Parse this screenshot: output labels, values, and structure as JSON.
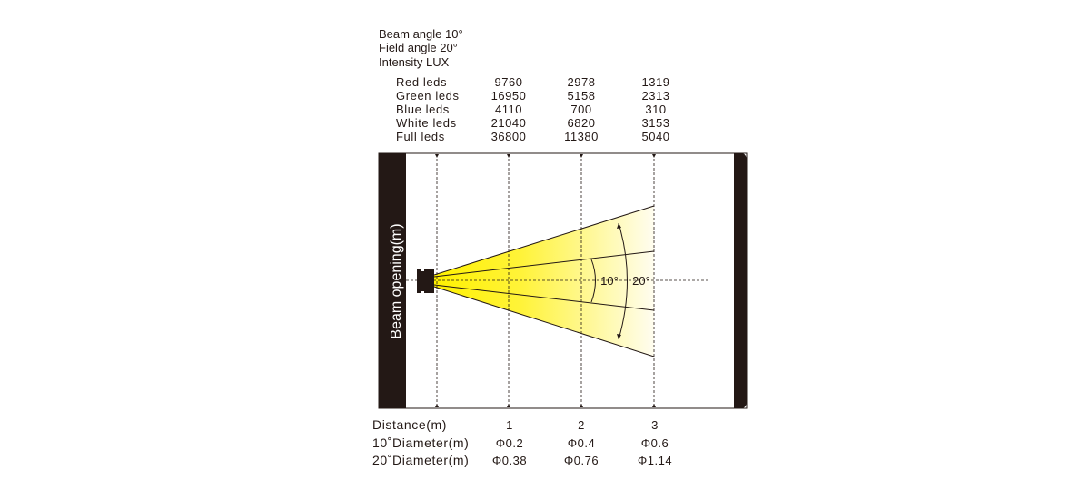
{
  "header": {
    "beam_angle": "Beam angle 10°",
    "field_angle": "Field angle 20°",
    "intensity": "Intensity LUX"
  },
  "intensity_table": {
    "rows": [
      {
        "label": "Red leds",
        "values": [
          "9760",
          "2978",
          "1319"
        ]
      },
      {
        "label": "Green leds",
        "values": [
          "16950",
          "5158",
          "2313"
        ]
      },
      {
        "label": "Blue leds",
        "values": [
          "4110",
          "700",
          "310"
        ]
      },
      {
        "label": "White leds",
        "values": [
          "21040",
          "6820",
          "3153"
        ]
      },
      {
        "label": "Full leds",
        "values": [
          "36800",
          "11380",
          "5040"
        ]
      }
    ]
  },
  "diagram": {
    "axis_label": "Beam opening(m)",
    "inner_angle_label": "10°",
    "outer_angle_label": "20°",
    "beam_color": "#FFF100",
    "bar_color": "#231815"
  },
  "bottom_table": {
    "rows": [
      {
        "label": "Distance(m)",
        "values": [
          "1",
          "2",
          "3"
        ]
      },
      {
        "label": "10˚Diameter(m)",
        "values": [
          "Φ0.2",
          "Φ0.4",
          "Φ0.6"
        ]
      },
      {
        "label": "20˚Diameter(m)",
        "values": [
          "Φ0.38",
          "Φ0.76",
          "Φ1.14"
        ]
      }
    ]
  }
}
